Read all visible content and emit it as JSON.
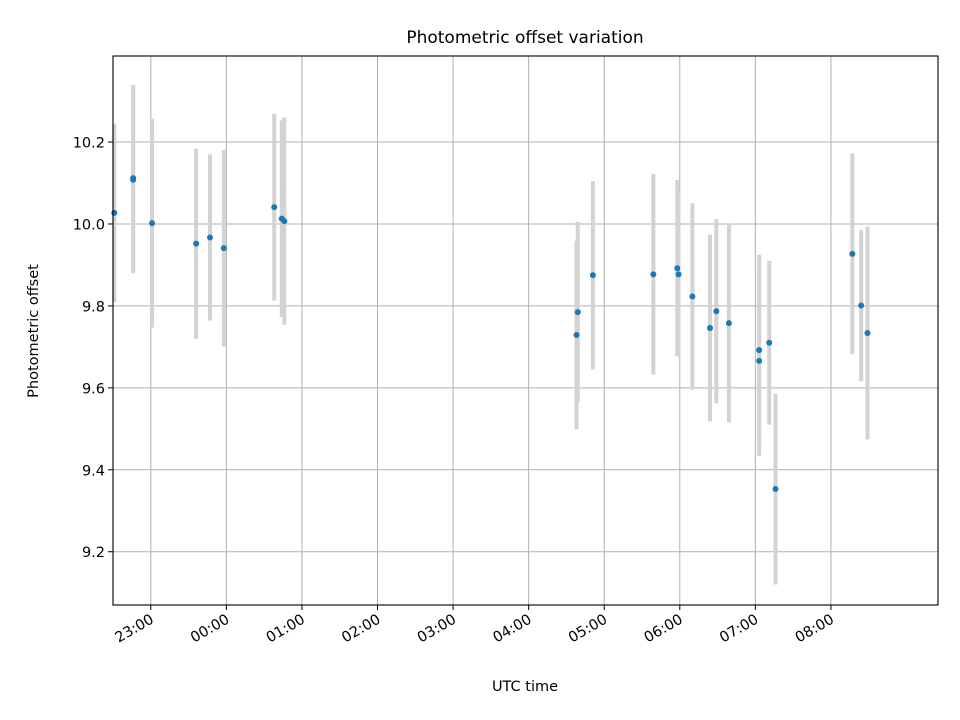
{
  "chart_data": {
    "type": "scatter",
    "title": "Photometric offset variation",
    "xlabel": "UTC time",
    "ylabel": "Photometric offset",
    "grid": true,
    "colors": {
      "point": "#1f77b4",
      "errorbar": "#d3d3d3",
      "grid": "#b0b0b0",
      "axes": "#000000"
    },
    "x_tick_labels": [
      "23:00",
      "00:00",
      "01:00",
      "02:00",
      "03:00",
      "04:00",
      "05:00",
      "06:00",
      "07:00",
      "08:00"
    ],
    "y_ticks": [
      9.2,
      9.4,
      9.6,
      9.8,
      10.0,
      10.2
    ],
    "y_tick_labels": [
      "9.2",
      "9.4",
      "9.6",
      "9.8",
      "10.0",
      "10.2"
    ],
    "xlim": [
      "22:30",
      "09:25"
    ],
    "ylim": [
      9.07,
      10.41
    ],
    "x": [
      "22:31",
      "22:46",
      "22:46",
      "23:01",
      "23:36",
      "23:47",
      "23:58",
      "00:38",
      "00:44",
      "00:46",
      "04:38",
      "04:39",
      "04:51",
      "05:39",
      "05:58",
      "05:59",
      "06:10",
      "06:24",
      "06:29",
      "06:39",
      "07:03",
      "07:03",
      "07:11",
      "07:16",
      "08:17",
      "08:24",
      "08:29"
    ],
    "y": [
      10.027,
      10.108,
      10.112,
      10.002,
      9.952,
      9.967,
      9.941,
      10.041,
      10.013,
      10.007,
      9.729,
      9.785,
      9.875,
      9.877,
      9.892,
      9.877,
      9.823,
      9.746,
      9.787,
      9.758,
      9.692,
      9.666,
      9.71,
      9.353,
      9.927,
      9.801,
      9.734
    ],
    "yerr": [
      0.218,
      0.228,
      0.228,
      0.255,
      0.232,
      0.203,
      0.24,
      0.228,
      0.24,
      0.253,
      0.23,
      0.22,
      0.23,
      0.245,
      0.215,
      0.2,
      0.228,
      0.228,
      0.225,
      0.243,
      0.233,
      0.233,
      0.2,
      0.233,
      0.245,
      0.185,
      0.26
    ]
  }
}
